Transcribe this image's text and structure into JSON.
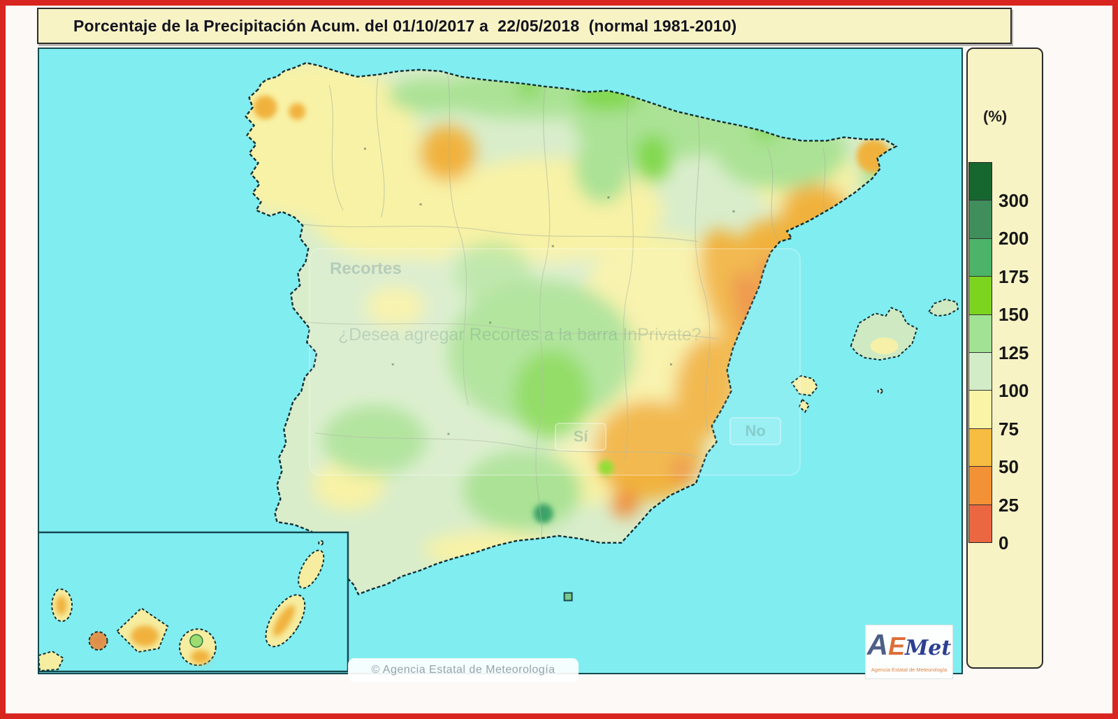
{
  "title": "Porcentaje de la Precipitación Acum. del 01/10/2017 a  22/05/2018  (normal 1981-2010)",
  "palette": {
    "frame_red": "#d8251f",
    "panel_yellow": "#f8f3c5",
    "sea_cyan": "#80edf1",
    "land_base_green": "#d9edcb"
  },
  "legend": {
    "unit_label": "(%)",
    "ticks": [
      "300",
      "200",
      "175",
      "150",
      "125",
      "100",
      "75",
      "50",
      "25",
      "0"
    ],
    "segment_colors": [
      "#16672f",
      "#3f8e5c",
      "#4cb368",
      "#7dd41f",
      "#a2e294",
      "#d2ecc8",
      "#faf5a6",
      "#f7bc42",
      "#f29136",
      "#ea6742"
    ],
    "scale_note": "ticks mark the lower bound of each color segment, top segment is >300"
  },
  "map": {
    "copyright": "© Agencia Estatal de Meteorología",
    "regions_shown": "Mainland Spain, Balearic Islands, Canary Islands (inset)"
  },
  "logo": {
    "letter_a": "A",
    "letter_e": "E",
    "letters_met": "Met",
    "subtext": "Agencia Estatal de Meteorología"
  },
  "watermark": {
    "app_title": "Recortes",
    "message": "¿Desea agregar Recortes a la barra InPrivate?",
    "yes_label": "Sí",
    "no_label": "No"
  }
}
